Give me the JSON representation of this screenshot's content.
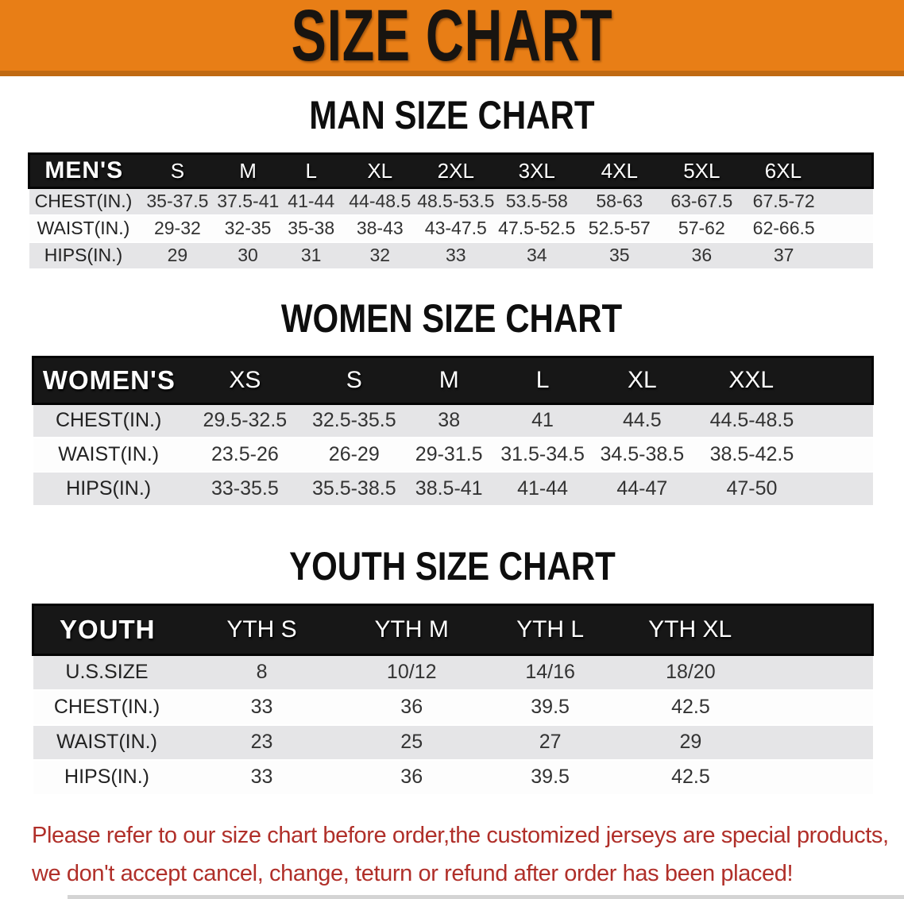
{
  "banner": {
    "title": "SIZE CHART",
    "background_color": "#e87e16",
    "text_color": "#181410"
  },
  "sections": {
    "men": {
      "title": "MAN SIZE CHART",
      "table": {
        "header": [
          "MEN'S",
          "S",
          "M",
          "L",
          "XL",
          "2XL",
          "3XL",
          "4XL",
          "5XL",
          "6XL"
        ],
        "rows": [
          [
            "CHEST(IN.)",
            "35-37.5",
            "37.5-41",
            "41-44",
            "44-48.5",
            "48.5-53.5",
            "53.5-58",
            "58-63",
            "63-67.5",
            "67.5-72"
          ],
          [
            "WAIST(IN.)",
            "29-32",
            "32-35",
            "35-38",
            "38-43",
            "43-47.5",
            "47.5-52.5",
            "52.5-57",
            "57-62",
            "62-66.5"
          ],
          [
            "HIPS(IN.)",
            "29",
            "30",
            "31",
            "32",
            "33",
            "34",
            "35",
            "36",
            "37"
          ]
        ]
      }
    },
    "women": {
      "title": "WOMEN SIZE CHART",
      "table": {
        "header": [
          "WOMEN'S",
          "XS",
          "S",
          "M",
          "L",
          "XL",
          "XXL"
        ],
        "rows": [
          [
            "CHEST(IN.)",
            "29.5-32.5",
            "32.5-35.5",
            "38",
            "41",
            "44.5",
            "44.5-48.5"
          ],
          [
            "WAIST(IN.)",
            "23.5-26",
            "26-29",
            "29-31.5",
            "31.5-34.5",
            "34.5-38.5",
            "38.5-42.5"
          ],
          [
            "HIPS(IN.)",
            "33-35.5",
            "35.5-38.5",
            "38.5-41",
            "41-44",
            "44-47",
            "47-50"
          ]
        ]
      }
    },
    "youth": {
      "title": "YOUTH SIZE CHART",
      "table": {
        "header": [
          "YOUTH",
          "YTH S",
          "YTH M",
          "YTH L",
          "YTH XL"
        ],
        "rows": [
          [
            "U.S.SIZE",
            "8",
            "10/12",
            "14/16",
            "18/20"
          ],
          [
            "CHEST(IN.)",
            "33",
            "36",
            "39.5",
            "42.5"
          ],
          [
            "WAIST(IN.)",
            "23",
            "25",
            "27",
            "29"
          ],
          [
            "HIPS(IN.)",
            "33",
            "36",
            "39.5",
            "42.5"
          ]
        ]
      }
    }
  },
  "disclaimer": {
    "line1": "Please refer to our size chart before order,the customized jerseys are special products,",
    "line2": "we don't accept cancel, change, teturn or refund after order has been placed!",
    "color": "#b02f29"
  }
}
